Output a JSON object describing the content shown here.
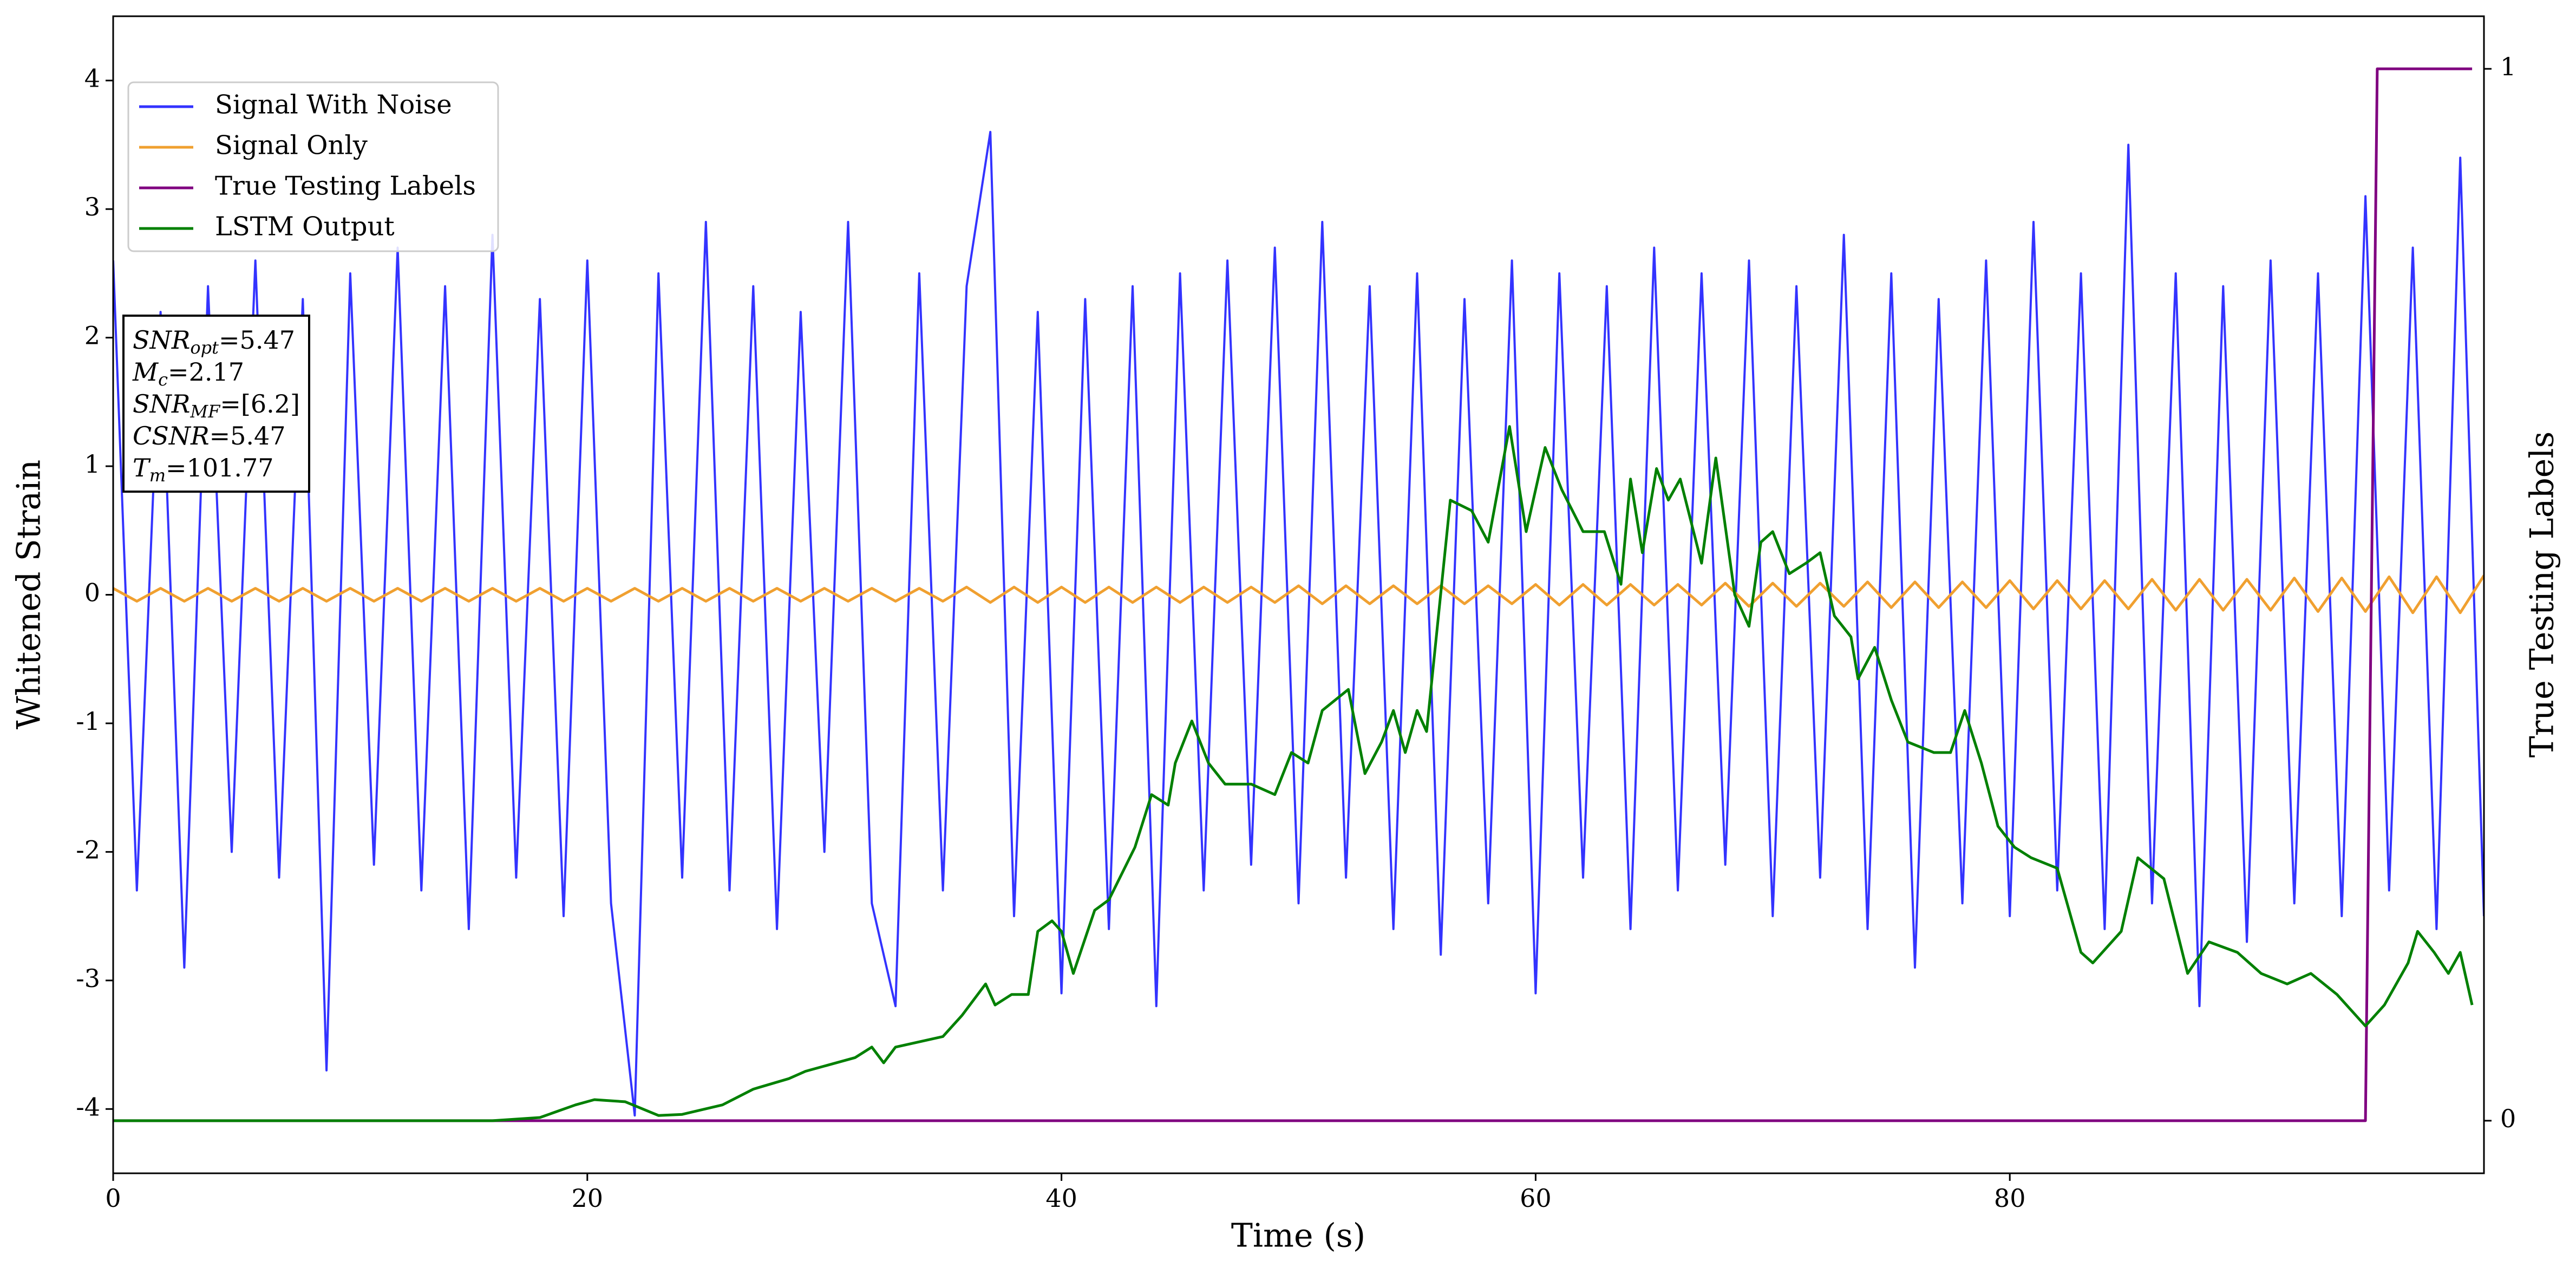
{
  "chart_data": {
    "type": "line",
    "xlabel": "Time (s)",
    "ylabel": "Whitened Strain",
    "y2label": "True Testing Labels",
    "xlim": [
      0,
      100
    ],
    "ylim": [
      -4.5,
      4.5
    ],
    "y2lim": [
      -0.05,
      1.05
    ],
    "xticks": [
      0,
      20,
      40,
      60,
      80
    ],
    "yticks": [
      -4,
      -3,
      -2,
      -1,
      0,
      1,
      2,
      3,
      4
    ],
    "y2ticks": [
      0,
      1
    ],
    "legend": "upper left",
    "x": [
      0,
      1,
      2,
      3,
      4,
      5,
      6,
      7,
      8,
      9,
      10,
      11,
      12,
      13,
      14,
      15,
      16,
      17,
      18,
      19,
      20,
      21,
      22,
      23,
      24,
      25,
      26,
      27,
      28,
      29,
      30,
      31,
      32,
      33,
      34,
      35,
      36,
      37,
      38,
      39,
      40,
      41,
      42,
      43,
      44,
      45,
      46,
      47,
      48,
      49,
      50,
      51,
      52,
      53,
      54,
      55,
      56,
      57,
      58,
      59,
      60,
      61,
      62,
      63,
      64,
      65,
      66,
      67,
      68,
      69,
      70,
      71,
      72,
      73,
      74,
      75,
      76,
      77,
      78,
      79,
      80,
      81,
      82,
      83,
      84,
      85,
      86,
      87,
      88,
      89,
      90,
      91,
      92,
      93,
      94,
      95,
      96,
      97,
      98,
      99,
      100
    ],
    "series": [
      {
        "name": "Signal With Noise",
        "color": "#3333ff",
        "values": [
          2.6,
          -2.3,
          2.2,
          -2.9,
          2.4,
          -2.0,
          2.6,
          -2.2,
          2.3,
          -3.7,
          2.5,
          -2.1,
          2.7,
          -2.3,
          2.4,
          -2.6,
          2.8,
          -2.2,
          2.3,
          -2.5,
          2.6,
          -2.4,
          -4.05,
          2.5,
          -2.2,
          2.9,
          -2.3,
          2.4,
          -2.6,
          2.2,
          -2.0,
          2.9,
          -2.4,
          -3.2,
          2.5,
          -2.3,
          2.4,
          3.6,
          -2.5,
          2.2,
          -3.1,
          2.3,
          -2.6,
          2.4,
          -3.2,
          2.5,
          -2.3,
          2.6,
          -2.1,
          2.7,
          -2.4,
          2.9,
          -2.2,
          2.4,
          -2.6,
          2.5,
          -2.8,
          2.3,
          -2.4,
          2.6,
          -3.1,
          2.5,
          -2.2,
          2.4,
          -2.6,
          2.7,
          -2.3,
          2.5,
          -2.1,
          2.6,
          -2.5,
          2.4,
          -2.2,
          2.8,
          -2.6,
          2.5,
          -2.9,
          2.3,
          -2.4,
          2.6,
          -2.5,
          2.9,
          -2.3,
          2.5,
          -2.6,
          3.5,
          -2.4,
          2.5,
          -3.2,
          2.4,
          -2.7,
          2.6,
          -2.4,
          2.5,
          -2.5,
          3.1,
          -2.3,
          2.7,
          -2.6,
          3.4,
          -2.5
        ]
      },
      {
        "name": "Signal Only",
        "color": "#f0a030",
        "values": [
          0.05,
          -0.05,
          0.05,
          -0.05,
          0.05,
          -0.05,
          0.05,
          -0.05,
          0.05,
          -0.05,
          0.05,
          -0.05,
          0.05,
          -0.05,
          0.05,
          -0.05,
          0.05,
          -0.05,
          0.05,
          -0.05,
          0.05,
          -0.05,
          0.05,
          -0.05,
          0.05,
          -0.05,
          0.05,
          -0.05,
          0.05,
          -0.05,
          0.05,
          -0.05,
          0.05,
          -0.05,
          0.05,
          -0.05,
          0.06,
          -0.06,
          0.06,
          -0.06,
          0.06,
          -0.06,
          0.06,
          -0.06,
          0.06,
          -0.06,
          0.06,
          -0.06,
          0.06,
          -0.06,
          0.07,
          -0.07,
          0.07,
          -0.07,
          0.07,
          -0.07,
          0.07,
          -0.07,
          0.07,
          -0.07,
          0.08,
          -0.08,
          0.08,
          -0.08,
          0.08,
          -0.08,
          0.08,
          -0.08,
          0.09,
          -0.09,
          0.09,
          -0.09,
          0.09,
          -0.09,
          0.1,
          -0.1,
          0.1,
          -0.1,
          0.1,
          -0.1,
          0.11,
          -0.11,
          0.11,
          -0.11,
          0.11,
          -0.11,
          0.12,
          -0.12,
          0.12,
          -0.12,
          0.12,
          -0.12,
          0.13,
          -0.13,
          0.13,
          -0.13,
          0.14,
          -0.14,
          0.14,
          -0.14,
          0.15
        ]
      },
      {
        "name": "True Testing Labels",
        "color": "#800080",
        "axis": "y2",
        "x": [
          0,
          95,
          95.5,
          99.5
        ],
        "values": [
          0,
          0,
          1,
          1
        ]
      },
      {
        "name": "LSTM Output",
        "color": "#008000",
        "axis": "y2",
        "x": [
          0,
          16,
          18,
          19.5,
          20.3,
          21.6,
          23,
          24,
          25.7,
          27,
          28.5,
          29.2,
          31.3,
          32,
          32.5,
          33,
          34,
          35,
          35.8,
          36.8,
          37.2,
          37.9,
          38.6,
          39,
          39.6,
          40,
          40.5,
          41.4,
          42,
          43.1,
          43.8,
          44.5,
          44.8,
          45.5,
          46.2,
          46.9,
          48,
          49,
          49.7,
          50.4,
          51,
          52.1,
          52.8,
          53.5,
          54,
          54.5,
          55,
          55.4,
          55.9,
          56.4,
          57.3,
          58,
          58.9,
          59.6,
          60.4,
          61.1,
          62,
          62.9,
          63.6,
          64,
          64.5,
          65.1,
          65.6,
          66.1,
          67,
          67.6,
          68.4,
          69,
          69.5,
          70,
          70.7,
          71.4,
          72,
          72.6,
          73.3,
          73.6,
          74.3,
          75,
          75.7,
          76.8,
          77.5,
          78.1,
          78.8,
          79.5,
          80.2,
          80.9,
          82,
          83,
          83.5,
          84.7,
          85.4,
          86.5,
          87.5,
          88.4,
          89.6,
          90.6,
          91.7,
          92.7,
          93.8,
          95,
          95.8,
          96.8,
          97.2,
          97.9,
          98.5,
          99,
          99.5
        ],
        "values": [
          0,
          0,
          0.003,
          0.015,
          0.02,
          0.018,
          0.005,
          0.006,
          0.015,
          0.03,
          0.04,
          0.047,
          0.06,
          0.07,
          0.055,
          0.07,
          0.075,
          0.08,
          0.1,
          0.13,
          0.11,
          0.12,
          0.12,
          0.18,
          0.19,
          0.18,
          0.14,
          0.2,
          0.21,
          0.26,
          0.31,
          0.3,
          0.34,
          0.38,
          0.34,
          0.32,
          0.32,
          0.31,
          0.35,
          0.34,
          0.39,
          0.41,
          0.33,
          0.36,
          0.39,
          0.35,
          0.39,
          0.37,
          0.48,
          0.59,
          0.58,
          0.55,
          0.66,
          0.56,
          0.64,
          0.6,
          0.56,
          0.56,
          0.51,
          0.61,
          0.54,
          0.62,
          0.59,
          0.61,
          0.53,
          0.63,
          0.5,
          0.47,
          0.55,
          0.56,
          0.52,
          0.53,
          0.54,
          0.48,
          0.46,
          0.42,
          0.45,
          0.4,
          0.36,
          0.35,
          0.35,
          0.39,
          0.34,
          0.28,
          0.26,
          0.25,
          0.24,
          0.16,
          0.15,
          0.18,
          0.25,
          0.23,
          0.14,
          0.17,
          0.16,
          0.14,
          0.13,
          0.14,
          0.12,
          0.09,
          0.11,
          0.15,
          0.18,
          0.16,
          0.14,
          0.16,
          0.11
        ]
      }
    ],
    "annotation": [
      {
        "var": "SNR",
        "sub": "opt",
        "text": "=5.47"
      },
      {
        "var": "M",
        "sub": "c",
        "text": "=2.17"
      },
      {
        "var": "SNR",
        "sub": "MF",
        "text": "=[6.2]"
      },
      {
        "var": "CSNR",
        "text": "=5.47"
      },
      {
        "var": "T",
        "sub": "m",
        "text": "=101.77"
      }
    ]
  }
}
